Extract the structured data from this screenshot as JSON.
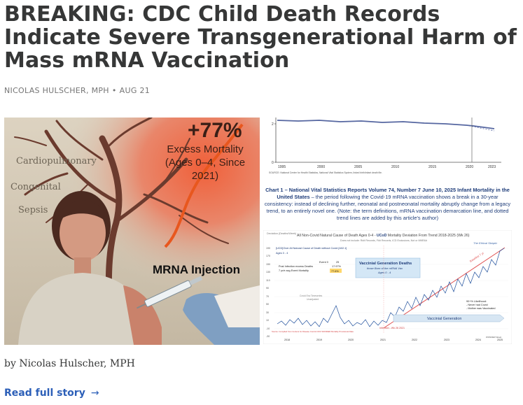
{
  "post": {
    "title": "BREAKING: CDC Child Death Records Indicate Severe Transgenerational Harm of Mass mRNA Vaccination",
    "author_caps": "NICOLAS HULSCHER, MPH",
    "separator": "•",
    "date": "AUG 21",
    "byline": "by Nicolas Hulscher, MPH",
    "read_more": "Read full story",
    "read_more_arrow": "→"
  },
  "illustration": {
    "headline_value": "+77%",
    "headline_label": "Excess Mortality (Ages 0–4, Since 2021)",
    "causes": [
      "Cardiopulmonary",
      "Congenital",
      "Sepsis"
    ],
    "injection_label": "MRNA Injection",
    "colors": {
      "trend_line": "#e8571e",
      "background": "#d7cdbb"
    }
  },
  "chart_top": {
    "x_ticks": [
      "1995",
      "2000",
      "2005",
      "2010",
      "2015",
      "2020",
      "2023"
    ],
    "y_ticks": [
      "2",
      "0"
    ],
    "source": "SOURCE: National Center for Health Statistics, National Vital Statistics System, linked birth/infant death file."
  },
  "caption": {
    "lead": "Chart 1 – National Vital Statistics Reports Volume 74, Number 7 June 10, 2025 Infant Mortality in the United States",
    "body": " – the period following the Covid-19 mRNA vaccination shows a break in a 30-year consistency: instead of declining further, neonatal and postneonatal mortality abruptly change from a legacy trend, to an entirely novel one. (Note: the term definitions, mRNA vaccination demarcation line, and dotted trend lines are added by this article's author)"
  },
  "chart_bottom": {
    "title_pre": "All Non-Covid Natural Cause of Death Ages 0-4 - ",
    "title_ucod": "UCoD",
    "title_post": " Mortality Deviation From Trend  2018-2025 (Wk 26)",
    "subtitle": "Does not include: R## Records, F## Records, ICD Exclusions, Not or MNR&#",
    "y_axis_label": "Deviation (Deaths/Week)",
    "series_label": "[UCD]Over All Natural Cause of Death without Covid [A02.1]",
    "age_label": "Ages 0 - 4",
    "stat_rows": [
      {
        "label": "Post Infection excess Deaths",
        "v1": "Event 0",
        "v2": "25"
      },
      {
        "label": "7 yr/e avg Event Mortality",
        "v1": "",
        "v2": "17.97%"
      },
      {
        "label": "",
        "v1": "",
        "v2": "77.6%"
      }
    ],
    "vaccinial_title": "Vaccinial Generation  Deaths",
    "vaccinial_sub1": "those Born of the mRNA Vax",
    "vaccinial_sub2": "Ages 0 - 4",
    "trend_label": "Baseline 7 yr",
    "right_note": [
      "90+% Likelihood:",
      "- Never had Covid",
      "- Mother was Vaccinated"
    ],
    "arrow_label": "Vaccinial Generation",
    "infection_label": "Infection - Wk 26 2021",
    "left_note": [
      "Covid Era Timeseries",
      "Unadjusted"
    ],
    "top_right_note": "The Ethical Skeptic",
    "x_ticks": [
      "2018",
      "2019",
      "2020",
      "2021",
      "2022",
      "2023",
      "2024",
      "2025"
    ],
    "y_ticks": [
      "190",
      "170",
      "150",
      "130",
      "110",
      "90",
      "70",
      "50",
      "30",
      "10",
      "-10",
      "-30"
    ],
    "footer": "Source: Compiled from Centers for Disease Control CDC WONDER Mortality Provisional Data",
    "corner_note": "WONDER Week"
  }
}
